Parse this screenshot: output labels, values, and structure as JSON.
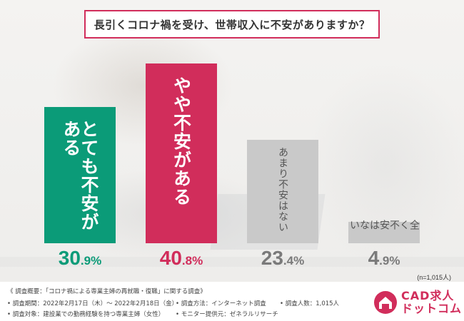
{
  "title": "長引くコロナ禍を受け、世帯収入に不安がありますか？",
  "chart_data": {
    "type": "bar",
    "categories": [
      "とても不安がある",
      "やや不安がある",
      "あまり不安はない",
      "全く不安はない"
    ],
    "values": [
      30.9,
      40.8,
      23.4,
      4.9
    ],
    "value_labels": [
      {
        "num": "30",
        "unit": ".9%"
      },
      {
        "num": "40",
        "unit": ".8%"
      },
      {
        "num": "23",
        "unit": ".4%"
      },
      {
        "num": "4",
        "unit": ".9%"
      }
    ],
    "colors": [
      "#0b9b78",
      "#d12d5b",
      "#c9c9c9",
      "#c9c9c9"
    ],
    "pct_colors": [
      "#0b9b78",
      "#d12d5b",
      "#7a7a7a",
      "#7a7a7a"
    ],
    "ylim": [
      0,
      40.8
    ],
    "grid": false,
    "legend": "none"
  },
  "n_note": "(n=1,015人)",
  "footer": {
    "line1": "《 調査概要：「コロナ禍による専業主婦の再就職・復職」に関する調査》",
    "period": "• 調査期間：2022年2月17日（木）～ 2022年2月18日（金）",
    "method": "• 調査方法：インターネット調査",
    "count": "• 調査人数：1,015人",
    "target": "• 調査対象：建設業での勤務経験を持つ専業主婦（女性）",
    "provider": "• モニター提供元：ゼネラルリサーチ"
  },
  "logo": {
    "line1": "CAD求人",
    "line2": "ドットコム",
    "color": "#d12d5b"
  }
}
